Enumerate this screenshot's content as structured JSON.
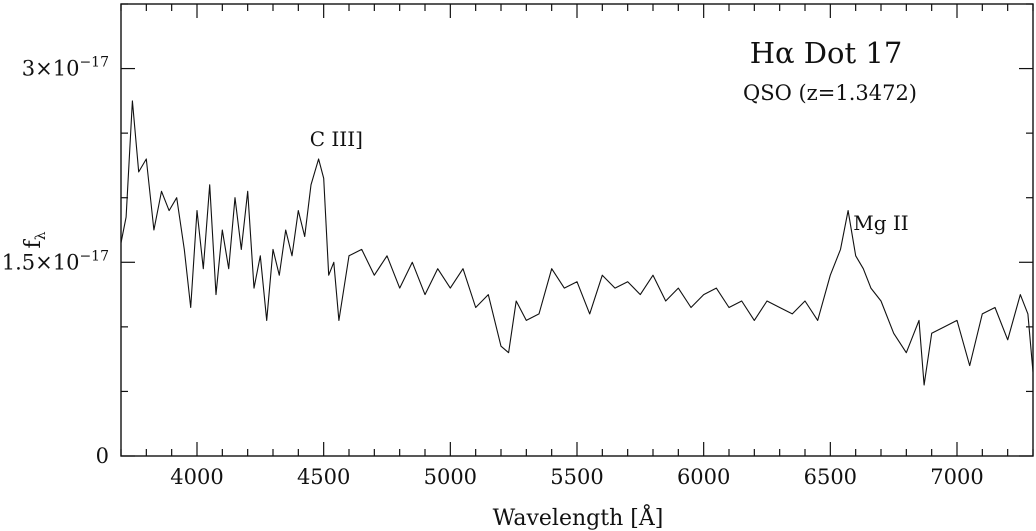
{
  "chart_data": {
    "type": "line",
    "title": "Hα Dot 17",
    "subtitle": "QSO (z=1.3472)",
    "xlabel": "Wavelength [Å]",
    "ylabel": "f",
    "ylabel_sub": "λ",
    "xlim": [
      3700,
      7300
    ],
    "ylim": [
      0,
      3.5e-17
    ],
    "x_ticks": [
      4000,
      4500,
      5000,
      5500,
      6000,
      6500,
      7000
    ],
    "x_tick_labels": [
      "4000",
      "4500",
      "5000",
      "5500",
      "6000",
      "6500",
      "7000"
    ],
    "y_ticks": [
      {
        "value": 0,
        "mantissa": "0",
        "exponent": ""
      },
      {
        "value": 1.5e-17,
        "mantissa": "1.5×10",
        "exponent": "−17"
      },
      {
        "value": 3e-17,
        "mantissa": "3×10",
        "exponent": "−17"
      }
    ],
    "annotations": [
      {
        "text": "C III]",
        "x": 4550,
        "y": 2.4e-17
      },
      {
        "text": "Mg II",
        "x": 6700,
        "y": 1.75e-17
      }
    ],
    "series": [
      {
        "x": [
          3700,
          3720,
          3745,
          3770,
          3800,
          3830,
          3860,
          3890,
          3920,
          3950,
          3975,
          4000,
          4025,
          4050,
          4075,
          4100,
          4125,
          4150,
          4175,
          4200,
          4225,
          4250,
          4275,
          4300,
          4325,
          4350,
          4375,
          4400,
          4425,
          4450,
          4480,
          4500,
          4520,
          4540,
          4560,
          4600,
          4650,
          4700,
          4750,
          4800,
          4850,
          4900,
          4950,
          5000,
          5050,
          5100,
          5150,
          5200,
          5230,
          5260,
          5300,
          5350,
          5400,
          5450,
          5500,
          5550,
          5600,
          5650,
          5700,
          5750,
          5800,
          5850,
          5900,
          5950,
          6000,
          6050,
          6100,
          6150,
          6200,
          6250,
          6300,
          6350,
          6400,
          6450,
          6500,
          6540,
          6570,
          6600,
          6630,
          6660,
          6700,
          6750,
          6800,
          6850,
          6870,
          6900,
          6950,
          7000,
          7050,
          7100,
          7150,
          7200,
          7250,
          7280,
          7300
        ],
        "y": [
          1.65e-17,
          1.85e-17,
          2.75e-17,
          2.2e-17,
          2.3e-17,
          1.75e-17,
          2.05e-17,
          1.9e-17,
          2e-17,
          1.6e-17,
          1.15e-17,
          1.9e-17,
          1.45e-17,
          2.1e-17,
          1.25e-17,
          1.75e-17,
          1.45e-17,
          2e-17,
          1.6e-17,
          2.05e-17,
          1.3e-17,
          1.55e-17,
          1.05e-17,
          1.6e-17,
          1.4e-17,
          1.75e-17,
          1.55e-17,
          1.9e-17,
          1.7e-17,
          2.1e-17,
          2.3e-17,
          2.15e-17,
          1.4e-17,
          1.5e-17,
          1.05e-17,
          1.55e-17,
          1.6e-17,
          1.4e-17,
          1.55e-17,
          1.3e-17,
          1.5e-17,
          1.25e-17,
          1.45e-17,
          1.3e-17,
          1.45e-17,
          1.15e-17,
          1.25e-17,
          8.5e-18,
          8e-18,
          1.2e-17,
          1.05e-17,
          1.1e-17,
          1.45e-17,
          1.3e-17,
          1.35e-17,
          1.1e-17,
          1.4e-17,
          1.3e-17,
          1.35e-17,
          1.25e-17,
          1.4e-17,
          1.2e-17,
          1.3e-17,
          1.15e-17,
          1.25e-17,
          1.3e-17,
          1.15e-17,
          1.2e-17,
          1.05e-17,
          1.2e-17,
          1.15e-17,
          1.1e-17,
          1.2e-17,
          1.05e-17,
          1.4e-17,
          1.6e-17,
          1.9e-17,
          1.55e-17,
          1.45e-17,
          1.3e-17,
          1.2e-17,
          9.5e-18,
          8e-18,
          1.05e-17,
          5.5e-18,
          9.5e-18,
          1e-17,
          1.05e-17,
          7e-18,
          1.1e-17,
          1.15e-17,
          9e-18,
          1.25e-17,
          1.1e-17,
          6.5e-18
        ]
      }
    ]
  }
}
